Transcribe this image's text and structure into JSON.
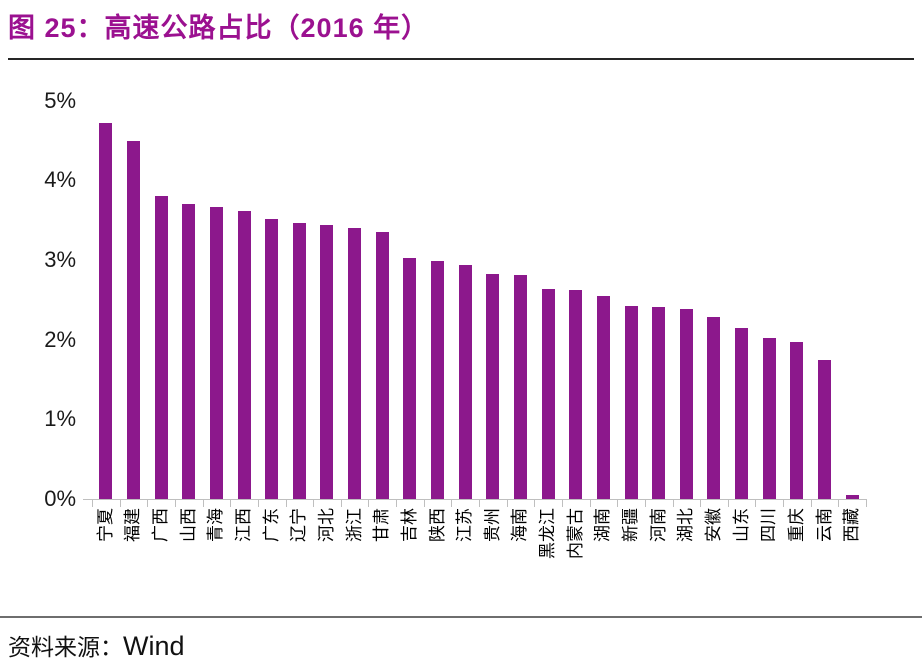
{
  "title": "图 25：高速公路占比（2016 年）",
  "source": {
    "label": "资料来源：",
    "value": "Wind"
  },
  "colors": {
    "title": "#9B1190",
    "bar": "#8C188C",
    "axis": "#BFBFBF",
    "title_rule": "#262626",
    "source_rule": "#6e6e6e"
  },
  "chart_data": {
    "type": "bar",
    "title": "高速公路占比（2016 年）",
    "xlabel": "",
    "ylabel": "",
    "unit": "%",
    "ylim": [
      0,
      5
    ],
    "grid": false,
    "legend": "none",
    "yticks": [
      "5%",
      "4%",
      "3%",
      "2%",
      "1%",
      "0%"
    ],
    "categories": [
      "宁夏",
      "福建",
      "广西",
      "山西",
      "青海",
      "江西",
      "广东",
      "辽宁",
      "河北",
      "浙江",
      "甘肃",
      "吉林",
      "陕西",
      "江苏",
      "贵州",
      "海南",
      "黑龙江",
      "内蒙古",
      "湖南",
      "新疆",
      "河南",
      "湖北",
      "安徽",
      "山东",
      "四川",
      "重庆",
      "云南",
      "西藏"
    ],
    "values": [
      4.72,
      4.5,
      3.8,
      3.7,
      3.66,
      3.62,
      3.51,
      3.46,
      3.44,
      3.4,
      3.35,
      3.03,
      2.99,
      2.94,
      2.83,
      2.81,
      2.64,
      2.62,
      2.55,
      2.42,
      2.41,
      2.38,
      2.29,
      2.15,
      2.02,
      1.97,
      1.74,
      0.05
    ]
  }
}
